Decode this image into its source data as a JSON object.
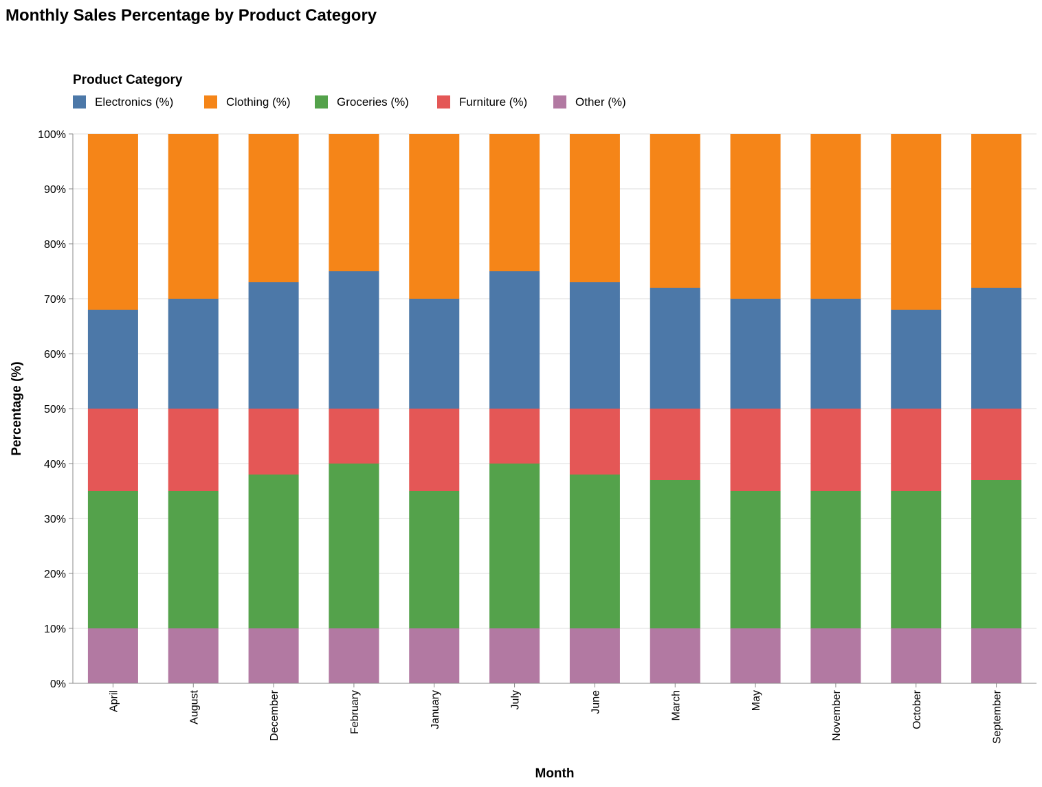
{
  "chart_data": {
    "type": "bar",
    "stacked": true,
    "title": "Monthly Sales Percentage by Product Category",
    "xlabel": "Month",
    "ylabel": "Percentage (%)",
    "ylim": [
      0,
      100
    ],
    "y_tick_format": "percent",
    "y_ticks": [
      "0%",
      "10%",
      "20%",
      "30%",
      "40%",
      "50%",
      "60%",
      "70%",
      "80%",
      "90%",
      "100%"
    ],
    "grid": true,
    "legend": {
      "title": "Product Category",
      "placement": "top-left"
    },
    "categories": [
      "April",
      "August",
      "December",
      "February",
      "January",
      "July",
      "June",
      "March",
      "May",
      "November",
      "October",
      "September"
    ],
    "series": [
      {
        "name": "Electronics (%)",
        "color": "#4c78a8",
        "values": [
          18,
          20,
          23,
          25,
          20,
          25,
          23,
          22,
          20,
          20,
          18,
          22
        ]
      },
      {
        "name": "Clothing (%)",
        "color": "#f58518",
        "values": [
          32,
          30,
          27,
          25,
          30,
          25,
          27,
          28,
          30,
          30,
          32,
          28
        ]
      },
      {
        "name": "Groceries (%)",
        "color": "#54a24b",
        "values": [
          25,
          25,
          28,
          30,
          25,
          30,
          28,
          27,
          25,
          25,
          25,
          27
        ]
      },
      {
        "name": "Furniture (%)",
        "color": "#e45756",
        "values": [
          15,
          15,
          12,
          10,
          15,
          10,
          12,
          13,
          15,
          15,
          15,
          13
        ]
      },
      {
        "name": "Other (%)",
        "color": "#b279a2",
        "values": [
          10,
          10,
          10,
          10,
          10,
          10,
          10,
          10,
          10,
          10,
          10,
          10
        ]
      }
    ],
    "stack_order_bottom_to_top": [
      "Other (%)",
      "Groceries (%)",
      "Furniture (%)",
      "Electronics (%)",
      "Clothing (%)"
    ]
  }
}
